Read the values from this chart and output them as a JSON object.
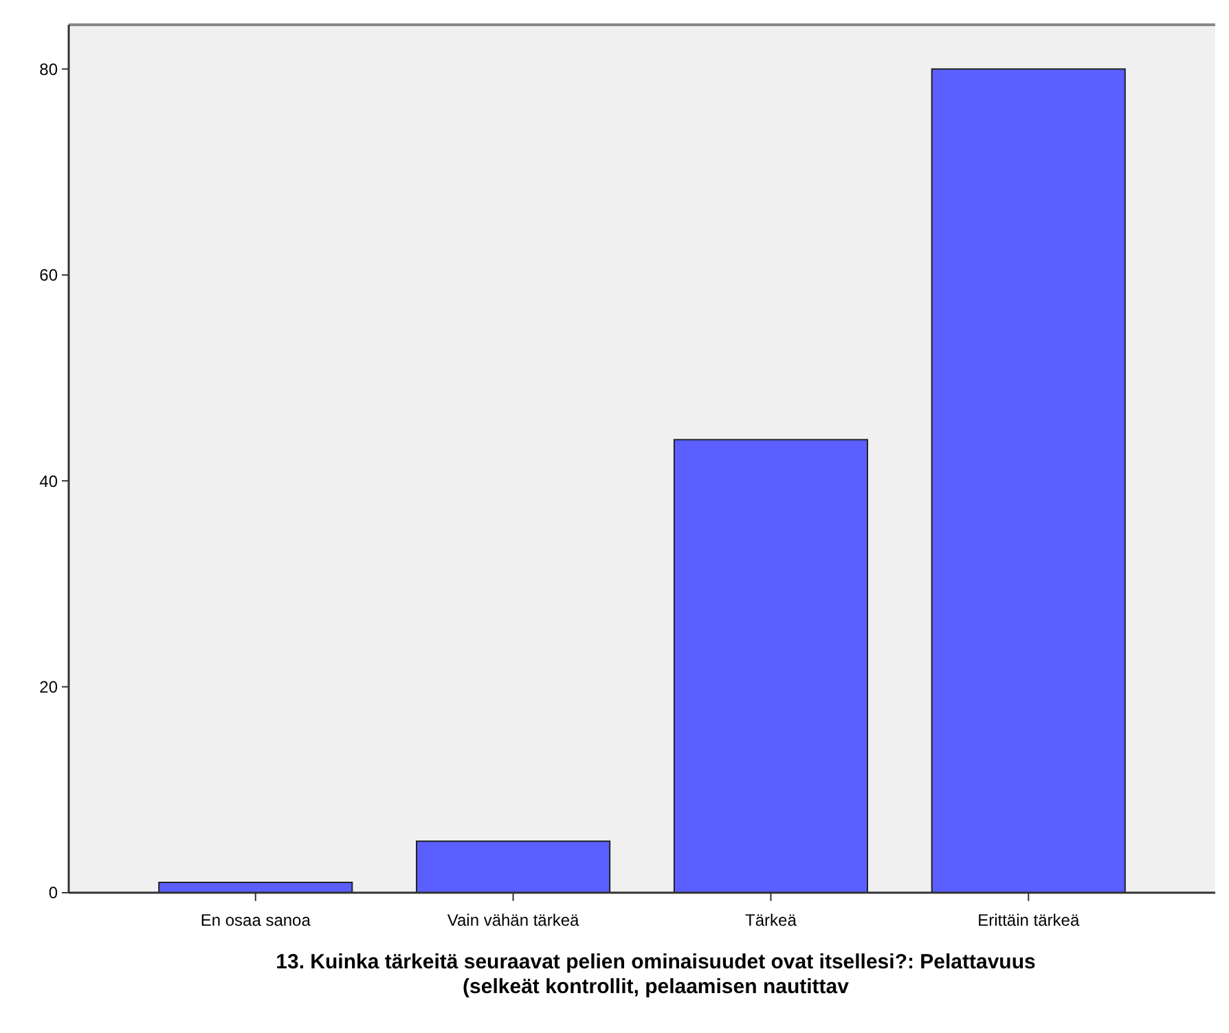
{
  "chart_data": {
    "type": "bar",
    "xlabel": "13. Kuinka tärkeitä seuraavat pelien ominaisuudet ovat itsellesi?: Pelattavuus\n(selkeät kontrollit, pelaamisen nautittav",
    "categories": [
      "En osaa sanoa",
      "Vain vähän tärkeä",
      "Tärkeä",
      "Erittäin tärkeä"
    ],
    "values": [
      1,
      5,
      44,
      80
    ],
    "color": "#5b5fff",
    "ylim": [
      0,
      84.3
    ],
    "yticks": [
      0,
      20,
      40,
      60,
      80
    ],
    "grid": false
  }
}
